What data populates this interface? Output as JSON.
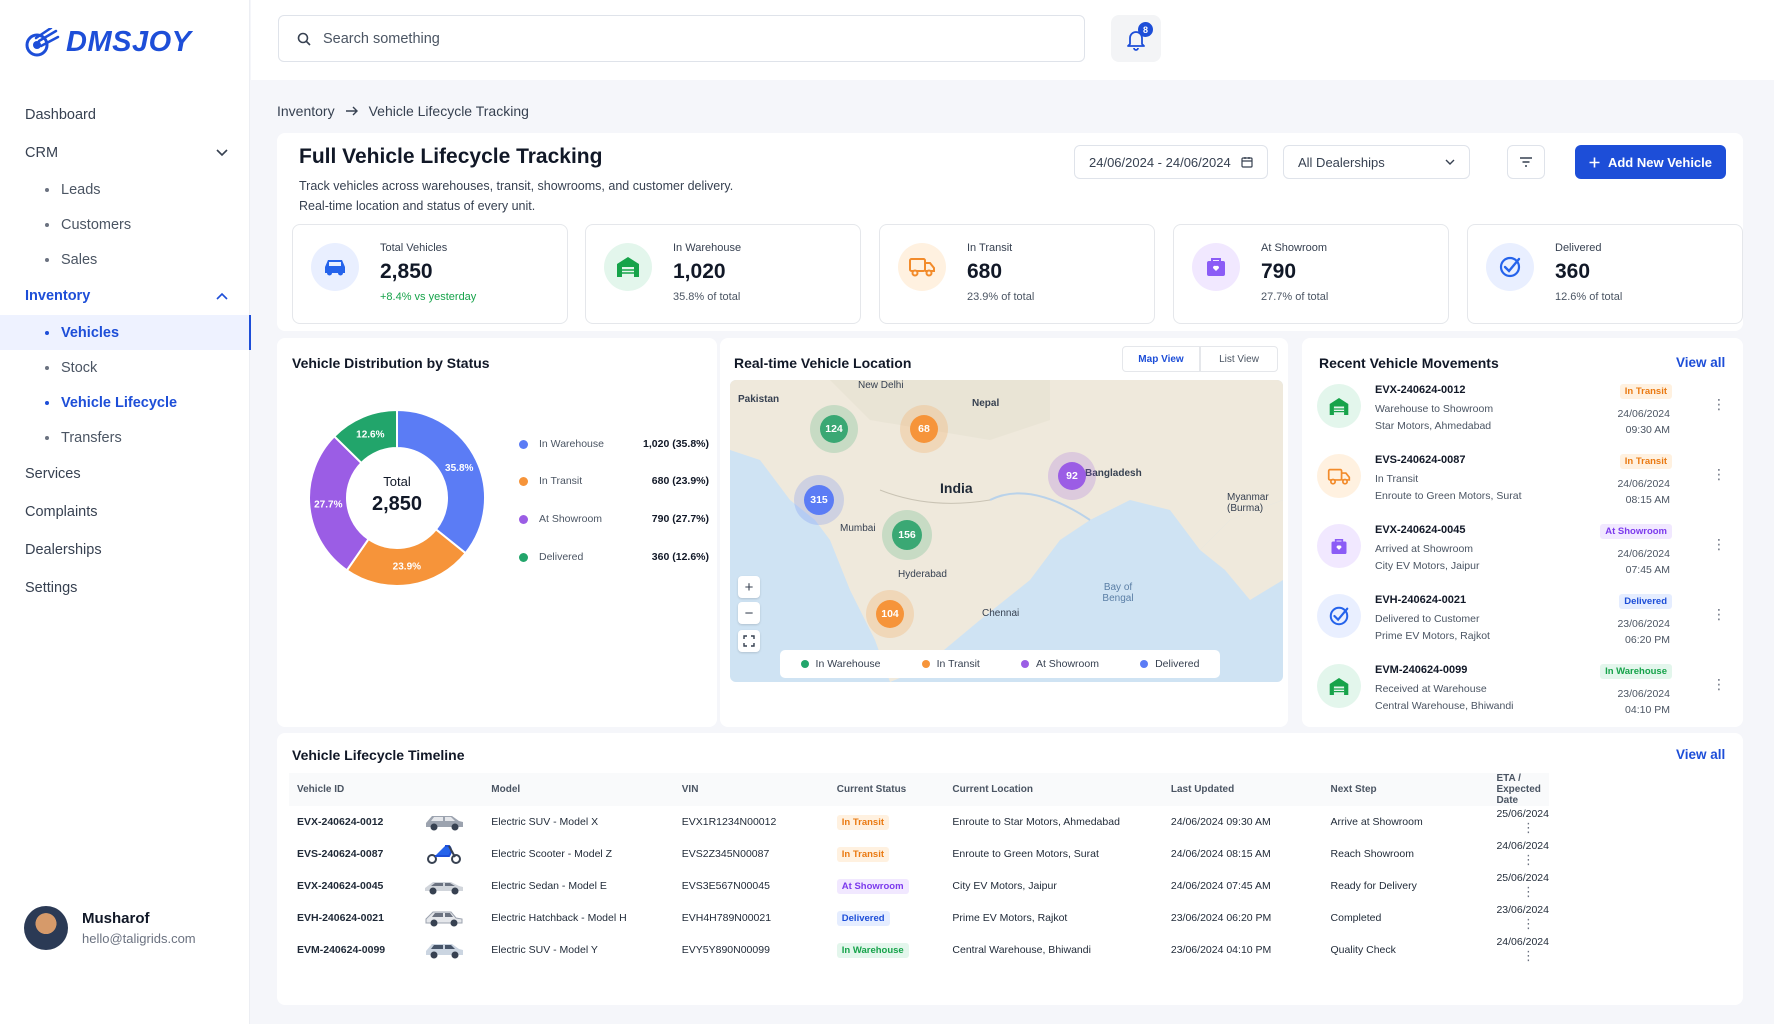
{
  "brand": "DMSJOY",
  "search": {
    "placeholder": "Search something"
  },
  "notifications": {
    "count": "8"
  },
  "nav": {
    "dashboard": "Dashboard",
    "crm": "CRM",
    "crm_items": [
      "Leads",
      "Customers",
      "Sales"
    ],
    "inventory": "Inventory",
    "inventory_items": [
      "Vehicles",
      "Stock",
      "Vehicle Lifecycle",
      "Transfers"
    ],
    "services": "Services",
    "complaints": "Complaints",
    "dealerships": "Dealerships",
    "settings": "Settings"
  },
  "user": {
    "name": "Musharof",
    "email": "hello@taligrids.com"
  },
  "breadcrumb": {
    "parent": "Inventory",
    "current": "Vehicle Lifecycle Tracking"
  },
  "page": {
    "title": "Full Vehicle Lifecycle Tracking",
    "subtitle1": "Track vehicles across warehouses, transit, showrooms, and customer delivery.",
    "subtitle2": "Real-time location and status of every unit.",
    "date_range": "24/06/2024 - 24/06/2024",
    "dealership_select": "All Dealerships",
    "add_button": "Add New Vehicle"
  },
  "stats": [
    {
      "label": "Total Vehicles",
      "value": "2,850",
      "sub": "+8.4% vs yesterday",
      "color": "#2563eb"
    },
    {
      "label": "In Warehouse",
      "value": "1,020",
      "sub": "35.8% of total",
      "color": "#16a34a"
    },
    {
      "label": "In Transit",
      "value": "680",
      "sub": "23.9% of total",
      "color": "#f28b2b"
    },
    {
      "label": "At Showroom",
      "value": "790",
      "sub": "27.7% of total",
      "color": "#8b5cf6"
    },
    {
      "label": "Delivered",
      "value": "360",
      "sub": "12.6% of total",
      "color": "#2563eb"
    }
  ],
  "distribution": {
    "title": "Vehicle Distribution by Status",
    "center_label": "Total",
    "center_value": "2,850",
    "legend": [
      {
        "name": "In Warehouse",
        "value": "1,020 (35.8%)",
        "pct": "35.8%",
        "color": "#5b7cf5"
      },
      {
        "name": "In Transit",
        "value": "680 (23.9%)",
        "pct": "23.9%",
        "color": "#f6943a"
      },
      {
        "name": "At Showroom",
        "value": "790 (27.7%)",
        "pct": "27.7%",
        "color": "#9b5de5"
      },
      {
        "name": "Delivered",
        "value": "360 (12.6%)",
        "pct": "12.6%",
        "color": "#22a56b"
      }
    ]
  },
  "chart_data": {
    "type": "pie",
    "categories": [
      "In Warehouse",
      "In Transit",
      "At Showroom",
      "Delivered"
    ],
    "values": [
      1020,
      680,
      790,
      360
    ],
    "percent": [
      35.8,
      23.9,
      27.7,
      12.6
    ],
    "title": "Vehicle Distribution by Status"
  },
  "map": {
    "title": "Real-time Vehicle Location",
    "tab_map": "Map View",
    "tab_list": "List View",
    "labels": [
      "Pakistan",
      "New Delhi",
      "Nepal",
      "India",
      "Bangladesh",
      "Myanmar (Burma)",
      "Mumbai",
      "Hyderabad",
      "Chennai",
      "Bay of Bengal"
    ],
    "clusters": [
      "124",
      "68",
      "315",
      "92",
      "156",
      "104"
    ],
    "legend": [
      "In Warehouse",
      "In Transit",
      "At Showroom",
      "Delivered"
    ]
  },
  "movements": {
    "title": "Recent Vehicle Movements",
    "view_all": "View all",
    "items": [
      {
        "id": "EVX-240624-0012",
        "l2": "Warehouse to Showroom",
        "l3": "Star Motors, Ahmedabad",
        "status": "In Transit",
        "date": "24/06/2024",
        "time": "09:30 AM"
      },
      {
        "id": "EVS-240624-0087",
        "l2": "In Transit",
        "l3": "Enroute to Green Motors, Surat",
        "status": "In Transit",
        "date": "24/06/2024",
        "time": "08:15 AM"
      },
      {
        "id": "EVX-240624-0045",
        "l2": "Arrived at Showroom",
        "l3": "City EV Motors, Jaipur",
        "status": "At Showroom",
        "date": "24/06/2024",
        "time": "07:45 AM"
      },
      {
        "id": "EVH-240624-0021",
        "l2": "Delivered to Customer",
        "l3": "Prime EV Motors, Rajkot",
        "status": "Delivered",
        "date": "23/06/2024",
        "time": "06:20 PM"
      },
      {
        "id": "EVM-240624-0099",
        "l2": "Received at Warehouse",
        "l3": "Central Warehouse, Bhiwandi",
        "status": "In Warehouse",
        "date": "23/06/2024",
        "time": "04:10 PM"
      }
    ]
  },
  "timeline": {
    "title": "Vehicle Lifecycle Timeline",
    "view_all": "View all",
    "columns": [
      "Vehicle ID",
      "Model",
      "VIN",
      "Current Status",
      "Current Location",
      "Last Updated",
      "Next Step",
      "ETA / Expected Date"
    ],
    "rows": [
      {
        "id": "EVX-240624-0012",
        "model": "Electric SUV - Model X",
        "vin": "EVX1R1234N00012",
        "status": "In Transit",
        "location": "Enroute to Star Motors, Ahmedabad",
        "updated": "24/06/2024 09:30 AM",
        "next": "Arrive at Showroom",
        "eta": "25/06/2024"
      },
      {
        "id": "EVS-240624-0087",
        "model": "Electric Scooter - Model Z",
        "vin": "EVS2Z345N00087",
        "status": "In Transit",
        "location": "Enroute to Green Motors, Surat",
        "updated": "24/06/2024 08:15 AM",
        "next": "Reach Showroom",
        "eta": "24/06/2024"
      },
      {
        "id": "EVX-240624-0045",
        "model": "Electric Sedan - Model E",
        "vin": "EVS3E567N00045",
        "status": "At Showroom",
        "location": "City EV Motors, Jaipur",
        "updated": "24/06/2024 07:45 AM",
        "next": "Ready for Delivery",
        "eta": "25/06/2024"
      },
      {
        "id": "EVH-240624-0021",
        "model": "Electric Hatchback - Model H",
        "vin": "EVH4H789N00021",
        "status": "Delivered",
        "location": "Prime EV Motors, Rajkot",
        "updated": "23/06/2024 06:20 PM",
        "next": "Completed",
        "eta": "23/06/2024"
      },
      {
        "id": "EVM-240624-0099",
        "model": "Electric SUV - Model Y",
        "vin": "EVY5Y890N00099",
        "status": "In Warehouse",
        "location": "Central Warehouse, Bhiwandi",
        "updated": "23/06/2024 04:10 PM",
        "next": "Quality Check",
        "eta": "24/06/2024"
      }
    ]
  }
}
